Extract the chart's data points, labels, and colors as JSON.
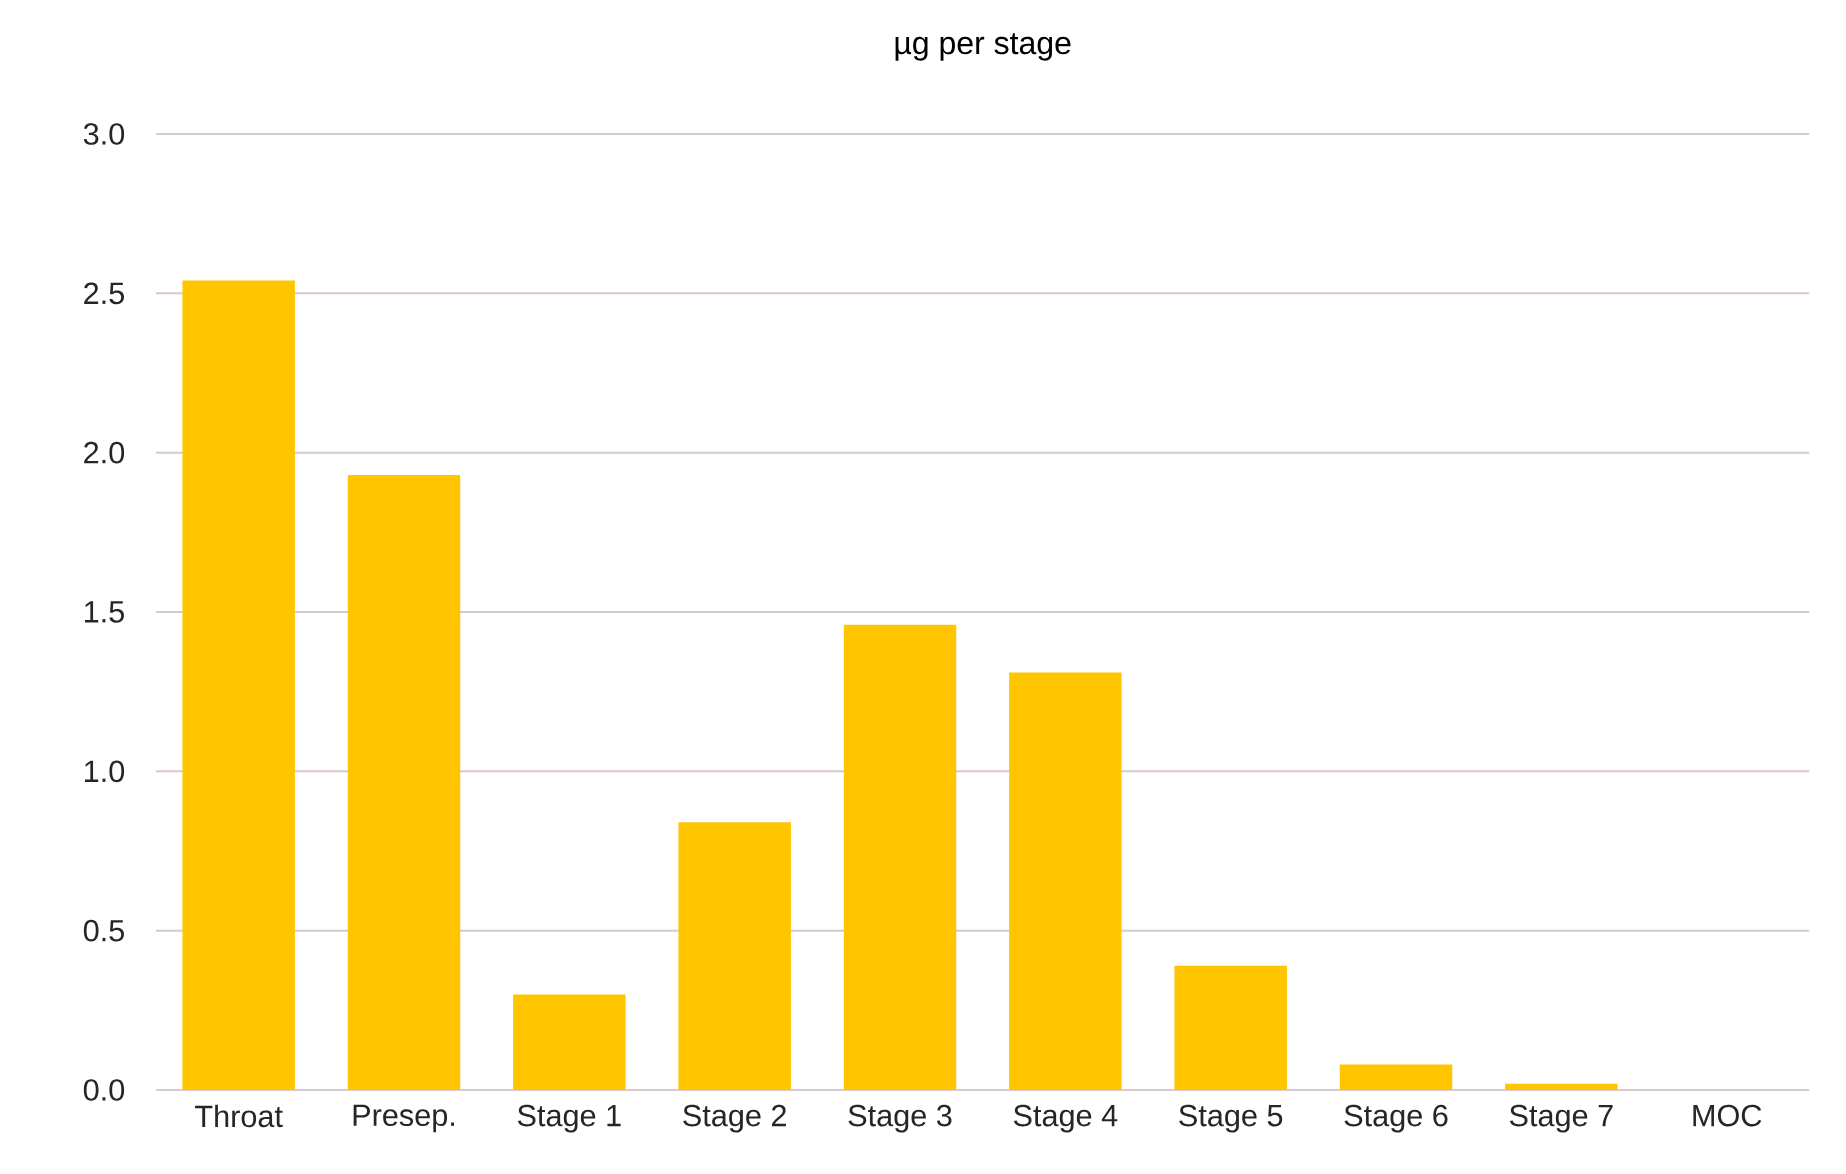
{
  "chart_data": {
    "type": "bar",
    "title": "µg per stage",
    "categories": [
      "Throat",
      "Presep.",
      "Stage 1",
      "Stage 2",
      "Stage 3",
      "Stage 4",
      "Stage 5",
      "Stage 6",
      "Stage 7",
      "MOC"
    ],
    "values": [
      2.54,
      1.93,
      0.3,
      0.84,
      1.46,
      1.31,
      0.39,
      0.08,
      0.02,
      0
    ],
    "color": "#ffc600",
    "ylim": [
      0,
      3
    ],
    "yticks": [
      {
        "value": 0,
        "label": "0.0"
      },
      {
        "value": 0.5,
        "label": "0.5"
      },
      {
        "value": 1,
        "label": "1.0"
      },
      {
        "value": 1.5,
        "label": "1.5"
      },
      {
        "value": 2,
        "label": "2.0"
      },
      {
        "value": 2.5,
        "label": "2.5"
      },
      {
        "value": 3,
        "label": "3.0"
      }
    ],
    "grid": "y"
  }
}
